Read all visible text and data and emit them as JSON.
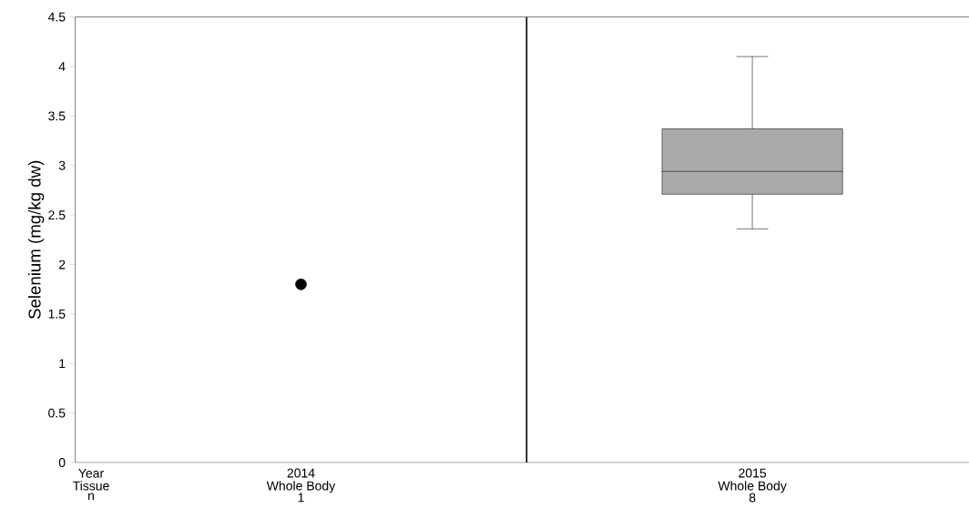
{
  "chart_data": {
    "type": "box",
    "ylabel": "Selenium (mg/kg dw)",
    "categories": [
      "2014",
      "2015"
    ],
    "boxes": [
      null,
      {
        "low": 2.36,
        "q1": 2.71,
        "median": 2.94,
        "q3": 3.37,
        "high": 4.1
      }
    ],
    "color": "#aaaaaa",
    "series": [
      {
        "type": "scatter",
        "values": [
          1.8,
          null
        ],
        "color": "#000000",
        "marker": "circle"
      }
    ],
    "ylim": [
      0,
      4.5
    ],
    "yticks": [
      0,
      0.5,
      1,
      1.5,
      2,
      2.5,
      3,
      3.5,
      4,
      4.5
    ],
    "annotations": [
      "Year",
      "Tissue",
      "n",
      "Whole Body",
      "1",
      "Whole Body",
      "8"
    ]
  }
}
